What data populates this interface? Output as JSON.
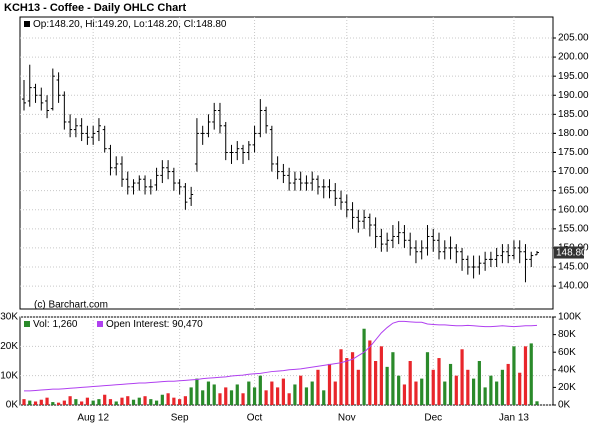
{
  "chart_data": [
    {
      "type": "ohlc",
      "title": "KCH13 - Coffee - Daily OHLC Chart",
      "legend": "Op:148.20, Hi:149.20, Lo:148.20, Cl:148.80",
      "annotation": "(c) Barchart.com",
      "last_label": "148.80",
      "color": "#000000",
      "last_label_color": "#333333",
      "open": [
        189,
        188.5,
        192,
        190,
        188.5,
        186.5,
        194,
        190,
        183,
        181,
        182,
        180,
        179,
        180.5,
        181,
        176,
        171,
        172,
        168,
        166,
        167,
        168,
        166,
        166.5,
        169,
        171,
        170,
        167,
        166,
        163,
        172,
        180,
        180,
        183,
        186,
        182,
        175,
        175,
        176,
        175,
        177,
        180,
        186,
        181,
        172,
        170,
        169,
        167,
        168,
        167,
        167,
        168,
        166,
        166,
        165,
        163,
        162,
        160,
        158,
        157,
        158,
        156,
        153,
        151,
        152,
        153,
        154,
        152,
        150,
        149,
        150,
        153,
        152,
        149,
        150,
        150,
        149,
        147,
        145,
        145,
        146,
        147,
        147,
        148,
        149,
        148,
        150,
        149,
        147,
        148.2
      ],
      "high": [
        194,
        198,
        193,
        192,
        190,
        197,
        196,
        191,
        185,
        184,
        184,
        182,
        182,
        184,
        182,
        177,
        174,
        174,
        170,
        168,
        169,
        169,
        168,
        171,
        173,
        173,
        171,
        168,
        167,
        166,
        184,
        182,
        185,
        188,
        188,
        183,
        177,
        178,
        177,
        178,
        182,
        189,
        187,
        182,
        174,
        172,
        171,
        170,
        170,
        169,
        170,
        169,
        168,
        168,
        167,
        165,
        164,
        162,
        160,
        160,
        159,
        158,
        155,
        154,
        156,
        157,
        156,
        154,
        152,
        152,
        156,
        155,
        154,
        152,
        153,
        151,
        150,
        148,
        148,
        148,
        149,
        149,
        150,
        151,
        151,
        152,
        152,
        151,
        149,
        149.2
      ],
      "low": [
        186,
        187,
        188,
        186,
        184,
        186,
        188,
        181,
        179,
        179,
        178,
        177,
        177,
        178,
        175,
        169,
        169,
        166,
        164,
        164,
        165,
        164,
        164,
        165,
        167,
        168,
        165,
        164,
        160,
        161,
        170,
        177,
        179,
        181,
        180,
        173,
        172,
        173,
        172,
        173,
        175,
        179,
        180,
        170,
        168,
        167,
        165,
        165,
        165,
        165,
        165,
        164,
        163,
        163,
        161,
        160,
        158,
        155,
        154,
        155,
        153,
        150,
        149,
        149,
        150,
        151,
        150,
        148,
        146,
        147,
        148,
        149,
        147,
        147,
        147,
        146,
        144,
        143,
        142,
        143,
        144,
        145,
        145,
        146,
        146,
        147,
        146,
        141,
        145,
        148.2
      ],
      "close": [
        188,
        192,
        190,
        188,
        186,
        195,
        190,
        183,
        181,
        182,
        180,
        179,
        180,
        182,
        176,
        171,
        172,
        168,
        166,
        167,
        168,
        166,
        166,
        169,
        171,
        170,
        167,
        166,
        162,
        164,
        180,
        180,
        183,
        186,
        182,
        175,
        175,
        176,
        175,
        177,
        180,
        186,
        182,
        172,
        170,
        169,
        167,
        168,
        167,
        167,
        168,
        166,
        166,
        165,
        163,
        162,
        160,
        158,
        157,
        158,
        156,
        153,
        151,
        152,
        153,
        154,
        152,
        150,
        149,
        150,
        153,
        152,
        149,
        150,
        150,
        149,
        147,
        145,
        145,
        146,
        147,
        147,
        148,
        149,
        148,
        150,
        149,
        147,
        148,
        148.8
      ],
      "ylim": [
        134,
        210.5
      ],
      "yticks": [
        {
          "value": 140,
          "label": "140.00"
        },
        {
          "value": 145,
          "label": "145.00"
        },
        {
          "value": 150,
          "label": "150.00"
        },
        {
          "value": 155,
          "label": "155.00"
        },
        {
          "value": 160,
          "label": "160.00"
        },
        {
          "value": 165,
          "label": "165.00"
        },
        {
          "value": 170,
          "label": "170.00"
        },
        {
          "value": 175,
          "label": "175.00"
        },
        {
          "value": 180,
          "label": "180.00"
        },
        {
          "value": 185,
          "label": "185.00"
        },
        {
          "value": 190,
          "label": "190.00"
        },
        {
          "value": 195,
          "label": "195.00"
        },
        {
          "value": 200,
          "label": "200.00"
        },
        {
          "value": 205,
          "label": "205.00"
        }
      ],
      "grid": true
    },
    {
      "type": "bar",
      "categories": [
        null,
        null,
        null,
        null,
        null,
        null,
        null,
        null,
        null,
        null,
        null,
        null,
        "Aug 12",
        null,
        null,
        null,
        null,
        null,
        null,
        null,
        null,
        null,
        null,
        null,
        null,
        null,
        null,
        "Sep",
        null,
        null,
        null,
        null,
        null,
        null,
        null,
        null,
        null,
        null,
        null,
        null,
        "Oct",
        null,
        null,
        null,
        null,
        null,
        null,
        null,
        null,
        null,
        null,
        null,
        null,
        null,
        null,
        null,
        "Nov",
        null,
        null,
        null,
        null,
        null,
        null,
        null,
        null,
        null,
        null,
        null,
        null,
        null,
        null,
        "Dec",
        null,
        null,
        null,
        null,
        null,
        null,
        null,
        null,
        null,
        null,
        null,
        null,
        null,
        "Jan 13",
        null,
        null,
        null,
        null
      ],
      "series": [
        {
          "name": "Vol: 1,260",
          "up_color": "#2a8a2a",
          "down_color": "#e8262b",
          "values": [
            2000,
            1500,
            1200,
            1800,
            2500,
            1000,
            800,
            1500,
            3000,
            2000,
            1200,
            2500,
            1500,
            2000,
            3500,
            2000,
            1200,
            2500,
            3000,
            1800,
            2500,
            3000,
            2000,
            1500,
            3500,
            4000,
            2500,
            2000,
            3000,
            6000,
            9000,
            5000,
            8000,
            7000,
            4000,
            6000,
            5000,
            7000,
            4000,
            8000,
            6000,
            10000,
            5000,
            8000,
            6000,
            9000,
            4000,
            7000,
            10000,
            6000,
            8000,
            12000,
            5000,
            14000,
            8000,
            19000,
            16000,
            18000,
            12000,
            26000,
            22000,
            15000,
            20000,
            13000,
            18000,
            10000,
            7000,
            15000,
            8000,
            9000,
            18000,
            12000,
            16000,
            8000,
            14000,
            10000,
            19000,
            12000,
            9000,
            15000,
            6000,
            10000,
            8000,
            12000,
            14000,
            20000,
            11000,
            20000,
            21000,
            1260
          ]
        },
        {
          "name": "Open Interest: 90,470",
          "color": "#b040f0",
          "axis": "y2",
          "values": [
            16000,
            16000,
            16500,
            17000,
            17500,
            18000,
            18000,
            18500,
            19000,
            19500,
            20000,
            20500,
            21000,
            21500,
            22000,
            22500,
            23000,
            23500,
            24000,
            24500,
            25000,
            25000,
            25500,
            26000,
            26500,
            27000,
            27000,
            27500,
            28000,
            28500,
            29000,
            30000,
            30500,
            31000,
            31500,
            32000,
            33000,
            33500,
            34000,
            35000,
            35500,
            36000,
            37000,
            38000,
            38500,
            39000,
            40000,
            40500,
            41000,
            42000,
            43000,
            44000,
            45000,
            46000,
            47000,
            48000,
            50000,
            52000,
            56000,
            60000,
            66000,
            74000,
            82000,
            88000,
            93000,
            95000,
            95000,
            94500,
            94000,
            94000,
            92000,
            91500,
            91000,
            91000,
            90500,
            90000,
            90000,
            90500,
            90000,
            89500,
            89000,
            89000,
            89500,
            90000,
            89500,
            89000,
            89500,
            90000,
            90000,
            90470
          ]
        }
      ],
      "ylim": [
        0,
        30000
      ],
      "yticks": [
        {
          "value": 0,
          "label": "0K"
        },
        {
          "value": 10000,
          "label": "10K"
        },
        {
          "value": 20000,
          "label": "20K"
        },
        {
          "value": 30000,
          "label": "30K"
        }
      ],
      "y2lim": [
        0,
        100000
      ],
      "y2ticks": [
        {
          "value": 0,
          "label": "0K"
        },
        {
          "value": 20000,
          "label": "20K"
        },
        {
          "value": 40000,
          "label": "40K"
        },
        {
          "value": 60000,
          "label": "60K"
        },
        {
          "value": 80000,
          "label": "80K"
        },
        {
          "value": 100000,
          "label": "100K"
        }
      ],
      "grid": true
    }
  ]
}
